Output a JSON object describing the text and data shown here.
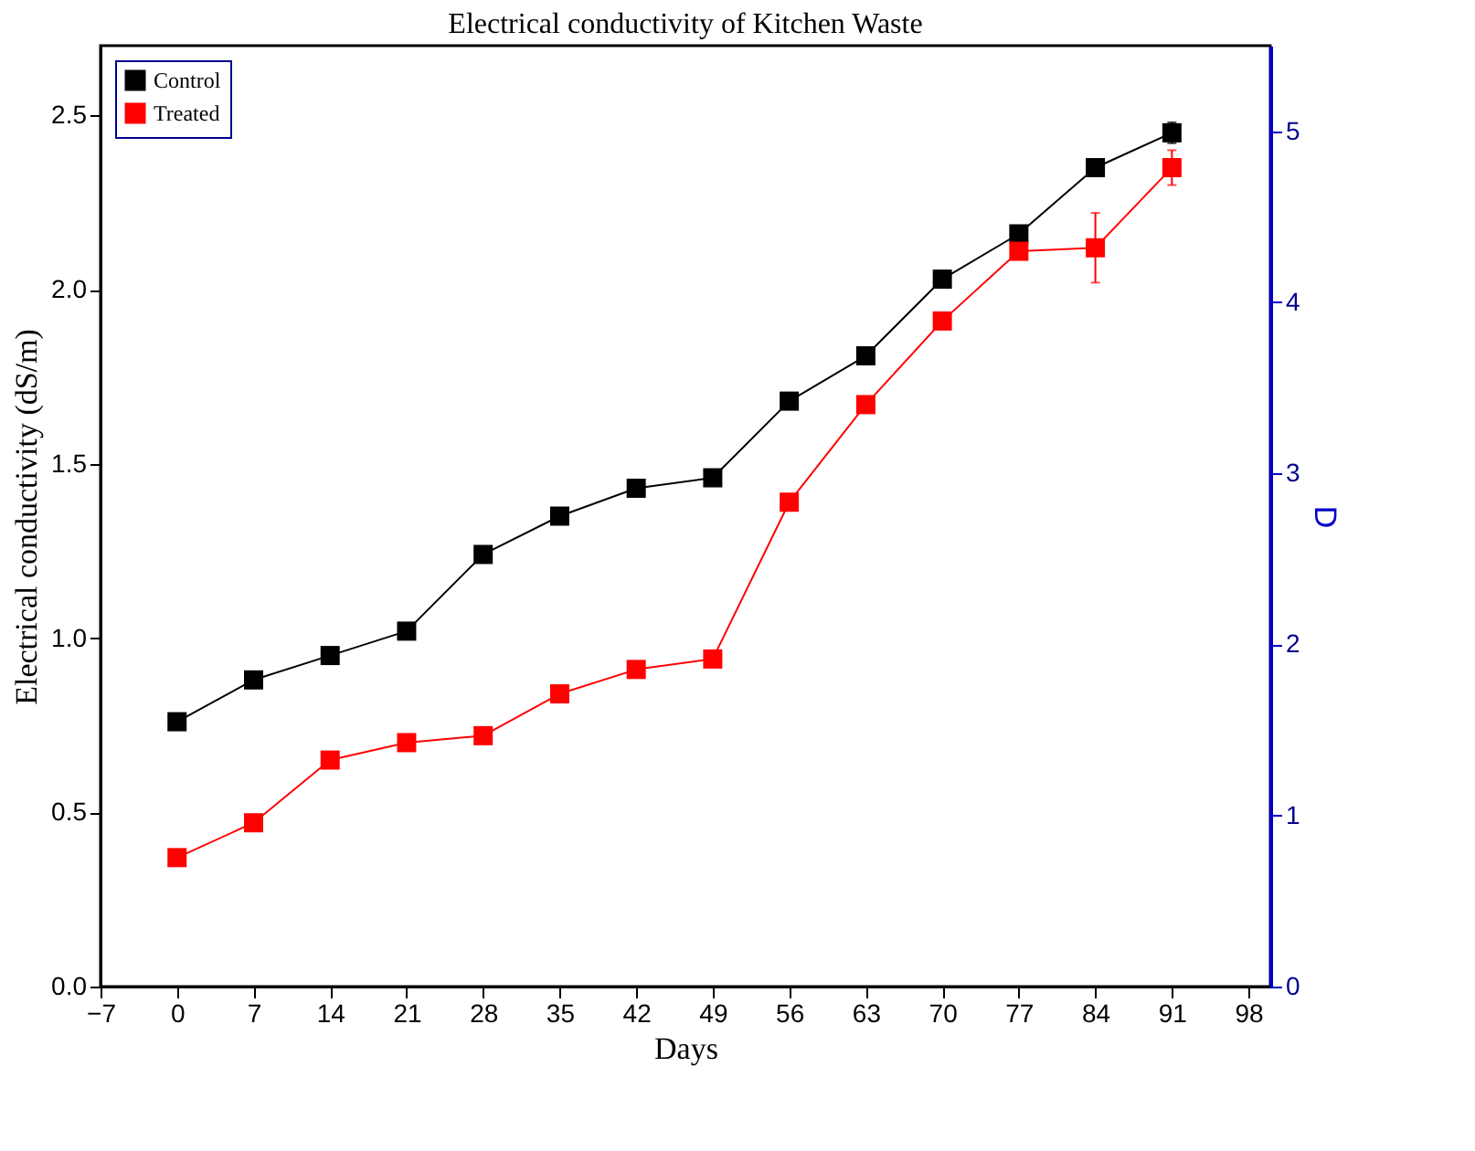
{
  "chart_data": {
    "type": "line",
    "title": "Electrical conductivity of Kitchen Waste",
    "xlabel": "Days",
    "ylabel": "Electrical conductivity (dS/m)",
    "y2label": "D",
    "x": [
      0,
      7,
      14,
      21,
      28,
      35,
      42,
      49,
      56,
      63,
      70,
      77,
      84,
      91
    ],
    "series": [
      {
        "name": "Control",
        "color": "#000000",
        "values": [
          0.76,
          0.88,
          0.95,
          1.02,
          1.24,
          1.35,
          1.43,
          1.46,
          1.68,
          1.81,
          2.03,
          2.16,
          2.35,
          2.45
        ],
        "errors": [
          null,
          null,
          null,
          null,
          null,
          null,
          null,
          null,
          null,
          null,
          null,
          null,
          null,
          0.03
        ]
      },
      {
        "name": "Treated",
        "color": "#ff0000",
        "values": [
          0.37,
          0.47,
          0.65,
          0.7,
          0.72,
          0.84,
          0.91,
          0.94,
          1.39,
          1.67,
          1.91,
          2.11,
          2.12,
          2.35
        ],
        "errors": [
          null,
          null,
          null,
          null,
          null,
          null,
          null,
          null,
          null,
          null,
          null,
          null,
          0.1,
          0.05
        ]
      }
    ],
    "xlim": [
      -7,
      100
    ],
    "xticks": [
      -7,
      0,
      7,
      14,
      21,
      28,
      35,
      42,
      49,
      56,
      63,
      70,
      77,
      84,
      91,
      98
    ],
    "ylim": [
      0,
      2.7
    ],
    "yticks": [
      {
        "value": 0,
        "label": "0.0"
      },
      0.5,
      {
        "value": 1,
        "label": "1.0"
      },
      1.5,
      {
        "value": 2,
        "label": "2.0"
      },
      2.5
    ],
    "y2lim": [
      0,
      5.5
    ],
    "y2ticks": [
      0,
      1,
      2,
      3,
      4,
      5
    ],
    "marker": "square",
    "line_style": "solid",
    "grid": false,
    "legend": "top left"
  }
}
